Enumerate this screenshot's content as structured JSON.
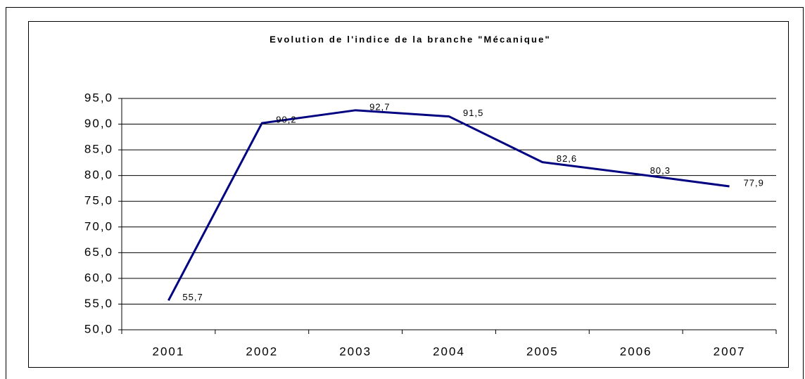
{
  "chart_data": {
    "type": "line",
    "title": "Evolution de l'indice de la branche \"Mécanique\"",
    "categories": [
      "2001",
      "2002",
      "2003",
      "2004",
      "2005",
      "2006",
      "2007"
    ],
    "series": [
      {
        "name": "Mécanique",
        "color": "#000080",
        "values": [
          55.7,
          90.2,
          92.7,
          91.5,
          82.6,
          80.3,
          77.9
        ],
        "value_labels": [
          "55,7",
          "90,2",
          "92,7",
          "91,5",
          "82,6",
          "80,3",
          "77,9"
        ]
      }
    ],
    "ylim": [
      50,
      95
    ],
    "yticks": [
      {
        "value": 50,
        "label": "50,0"
      },
      {
        "value": 55,
        "label": "55,0"
      },
      {
        "value": 60,
        "label": "60,0"
      },
      {
        "value": 65,
        "label": "65,0"
      },
      {
        "value": 70,
        "label": "70,0"
      },
      {
        "value": 75,
        "label": "75,0"
      },
      {
        "value": 80,
        "label": "80,0"
      },
      {
        "value": 85,
        "label": "85,0"
      },
      {
        "value": 90,
        "label": "90,0"
      },
      {
        "value": 95,
        "label": "95,0"
      }
    ],
    "grid": true
  }
}
